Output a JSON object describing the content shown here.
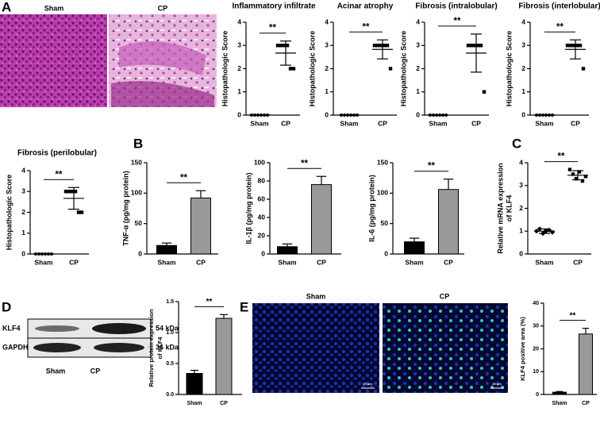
{
  "panel_labels": [
    "A",
    "B",
    "C",
    "D",
    "E"
  ],
  "images": {
    "histology": {
      "labels": [
        "Sham",
        "CP"
      ]
    },
    "blot": {
      "bands": [
        "KLF4",
        "GAPDH"
      ],
      "sizes": [
        "54 kDa",
        "36 kDa"
      ],
      "lanes": [
        "Sham",
        "CP"
      ]
    },
    "fluorescence": {
      "labels": [
        "Sham",
        "CP"
      ],
      "scale_bar": "25 μm"
    }
  },
  "chart_data": [
    {
      "type": "dotplot",
      "title": "Inflammatory infiltrate",
      "ylabel": [
        "Histopathologic Score"
      ],
      "categories": [
        "Sham",
        "CP"
      ],
      "points": [
        [
          0,
          0,
          0,
          0,
          0,
          0
        ],
        [
          3,
          3,
          3,
          3,
          2,
          2
        ]
      ],
      "means": [
        0,
        2.67
      ],
      "sd": [
        0,
        0.52
      ],
      "color": "#000000",
      "ylim": [
        0,
        4
      ],
      "yticks": [
        0,
        1,
        2,
        3,
        4
      ],
      "significance": "**"
    },
    {
      "type": "dotplot",
      "title": "Acinar atrophy",
      "ylabel": [
        "Histopathologic Score"
      ],
      "categories": [
        "Sham",
        "CP"
      ],
      "points": [
        [
          0,
          0,
          0,
          0,
          0,
          0
        ],
        [
          3,
          3,
          3,
          3,
          3,
          2
        ]
      ],
      "means": [
        0,
        2.83
      ],
      "sd": [
        0,
        0.41
      ],
      "color": "#000000",
      "ylim": [
        0,
        4
      ],
      "yticks": [
        0,
        1,
        2,
        3,
        4
      ],
      "significance": "**"
    },
    {
      "type": "dotplot",
      "title": "Fibrosis (intralobular)",
      "ylabel": [
        "Histopathologic Score"
      ],
      "categories": [
        "Sham",
        "CP"
      ],
      "points": [
        [
          0,
          0,
          0,
          0,
          0,
          0
        ],
        [
          3,
          3,
          3,
          3,
          3,
          1
        ]
      ],
      "means": [
        0,
        2.67
      ],
      "sd": [
        0,
        0.82
      ],
      "color": "#000000",
      "ylim": [
        0,
        4
      ],
      "yticks": [
        0,
        1,
        2,
        3,
        4
      ],
      "significance": "**"
    },
    {
      "type": "dotplot",
      "title": "Fibrosis (interlobular)",
      "ylabel": [
        "Histopathologic Score"
      ],
      "categories": [
        "Sham",
        "CP"
      ],
      "points": [
        [
          0,
          0,
          0,
          0,
          0,
          0
        ],
        [
          3,
          3,
          3,
          3,
          3,
          2
        ]
      ],
      "means": [
        0,
        2.83
      ],
      "sd": [
        0,
        0.41
      ],
      "color": "#000000",
      "ylim": [
        0,
        4
      ],
      "yticks": [
        0,
        1,
        2,
        3,
        4
      ],
      "significance": "**"
    },
    {
      "type": "dotplot",
      "title": "Fibrosis (perilobular)",
      "ylabel": [
        "Histopathologic Score"
      ],
      "categories": [
        "Sham",
        "CP"
      ],
      "points": [
        [
          0,
          0,
          0,
          0,
          0,
          0
        ],
        [
          3,
          3,
          3,
          3,
          2,
          2
        ]
      ],
      "means": [
        0,
        2.67
      ],
      "sd": [
        0,
        0.52
      ],
      "color": "#000000",
      "ylim": [
        0,
        4
      ],
      "yticks": [
        0,
        1,
        2,
        3,
        4
      ],
      "significance": "**"
    },
    {
      "type": "bar",
      "ylabel": [
        "TNF-α (pg/mg protein)"
      ],
      "categories": [
        "Sham",
        "CP"
      ],
      "values": [
        14,
        92
      ],
      "errors": [
        4,
        12
      ],
      "colors": [
        "#000000",
        "#999999"
      ],
      "ylim": [
        0,
        150
      ],
      "yticks": [
        0,
        50,
        100,
        150
      ],
      "significance": "**"
    },
    {
      "type": "bar",
      "ylabel": [
        "IL-1β (pg/mg protein)"
      ],
      "categories": [
        "Sham",
        "CP"
      ],
      "values": [
        8,
        76
      ],
      "errors": [
        3,
        9
      ],
      "colors": [
        "#000000",
        "#999999"
      ],
      "ylim": [
        0,
        100
      ],
      "yticks": [
        0,
        20,
        40,
        60,
        80,
        100
      ],
      "significance": "**"
    },
    {
      "type": "bar",
      "ylabel": [
        "IL-6 (pg/mg protein)"
      ],
      "categories": [
        "Sham",
        "CP"
      ],
      "values": [
        20,
        106
      ],
      "errors": [
        6,
        17
      ],
      "colors": [
        "#000000",
        "#999999"
      ],
      "ylim": [
        0,
        150
      ],
      "yticks": [
        0,
        50,
        100,
        150
      ],
      "significance": "**"
    },
    {
      "type": "dotplot",
      "ylabel": [
        "Relative mRNA expression",
        "of KLF4"
      ],
      "categories": [
        "Sham",
        "CP"
      ],
      "points": [
        [
          1.0,
          1.1,
          0.9,
          1.0,
          1.05,
          0.95
        ],
        [
          3.7,
          3.5,
          3.3,
          3.6,
          3.2,
          3.4
        ]
      ],
      "means": [
        1.0,
        3.45
      ],
      "sd": [
        0.1,
        0.2
      ],
      "color": "#000000",
      "ylim": [
        0,
        4
      ],
      "yticks": [
        0,
        1,
        2,
        3,
        4
      ],
      "significance": "**"
    },
    {
      "type": "bar",
      "ylabel": [
        "Relative protein expression",
        "of KLF4"
      ],
      "categories": [
        "Sham",
        "CP"
      ],
      "values": [
        0.34,
        1.23
      ],
      "errors": [
        0.05,
        0.06
      ],
      "colors": [
        "#000000",
        "#999999"
      ],
      "ylim": [
        0,
        1.5
      ],
      "yticks": [
        {
          "value": 0,
          "label": "0.0"
        },
        {
          "value": 0.5,
          "label": "0.5"
        },
        {
          "value": 1,
          "label": "1.0"
        },
        {
          "value": 1.5,
          "label": "1.5"
        }
      ],
      "significance": "**"
    },
    {
      "type": "bar",
      "ylabel": [
        "KLF4 positive area (%)"
      ],
      "categories": [
        "Sham",
        "CP"
      ],
      "values": [
        1,
        26.5
      ],
      "errors": [
        0.3,
        2.5
      ],
      "colors": [
        "#000000",
        "#999999"
      ],
      "ylim": [
        0,
        40
      ],
      "yticks": [
        0,
        10,
        20,
        30,
        40
      ],
      "significance": "**"
    }
  ]
}
